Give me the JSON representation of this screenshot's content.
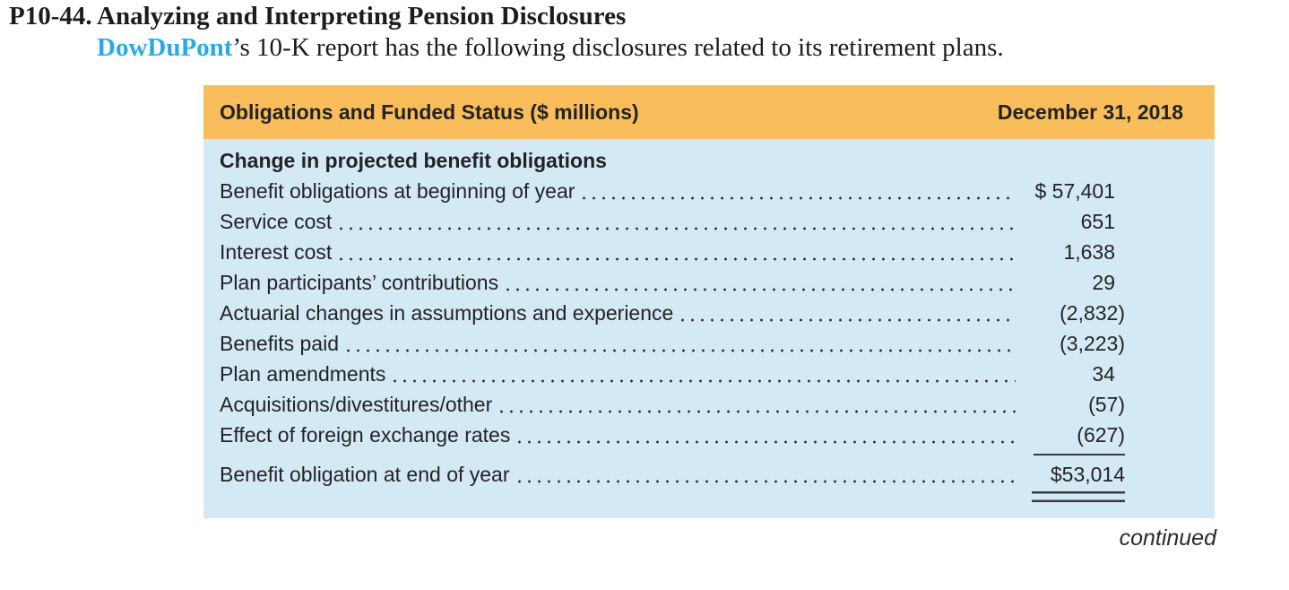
{
  "problem": {
    "number": "P10-44.",
    "title": "Analyzing and Interpreting Pension Disclosures",
    "company": "DowDuPont",
    "intro_rest": "’s 10-K report has the following disclosures related to its retirement plans."
  },
  "table": {
    "header_left": "Obligations and Funded Status ($ millions)",
    "header_right": "December 31, 2018",
    "section_heading": "Change in projected benefit obligations",
    "rows": [
      {
        "label": "Benefit obligations at beginning of year",
        "value": "$ 57,401"
      },
      {
        "label": "Service cost",
        "value": "651"
      },
      {
        "label": "Interest cost",
        "value": "1,638"
      },
      {
        "label": "Plan participants’ contributions",
        "value": "29"
      },
      {
        "label": "Actuarial changes in assumptions and experience",
        "value": "(2,832)"
      },
      {
        "label": "Benefits paid",
        "value": "(3,223)"
      },
      {
        "label": "Plan amendments",
        "value": "34"
      },
      {
        "label": "Acquisitions/divestitures/other",
        "value": "(57)"
      },
      {
        "label": "Effect of foreign exchange rates",
        "value": "(627)",
        "underline": "single"
      },
      {
        "label": "Benefit obligation at end of year",
        "value": "$53,014",
        "underline": "double",
        "total": true
      }
    ]
  },
  "footer": {
    "continued": "continued"
  },
  "colors": {
    "accent_orange": "#F9BD5B",
    "body_blue": "#D3E9F4",
    "link_blue": "#29ABE2",
    "ink": "#232326",
    "rule": "#3a3a3d"
  }
}
